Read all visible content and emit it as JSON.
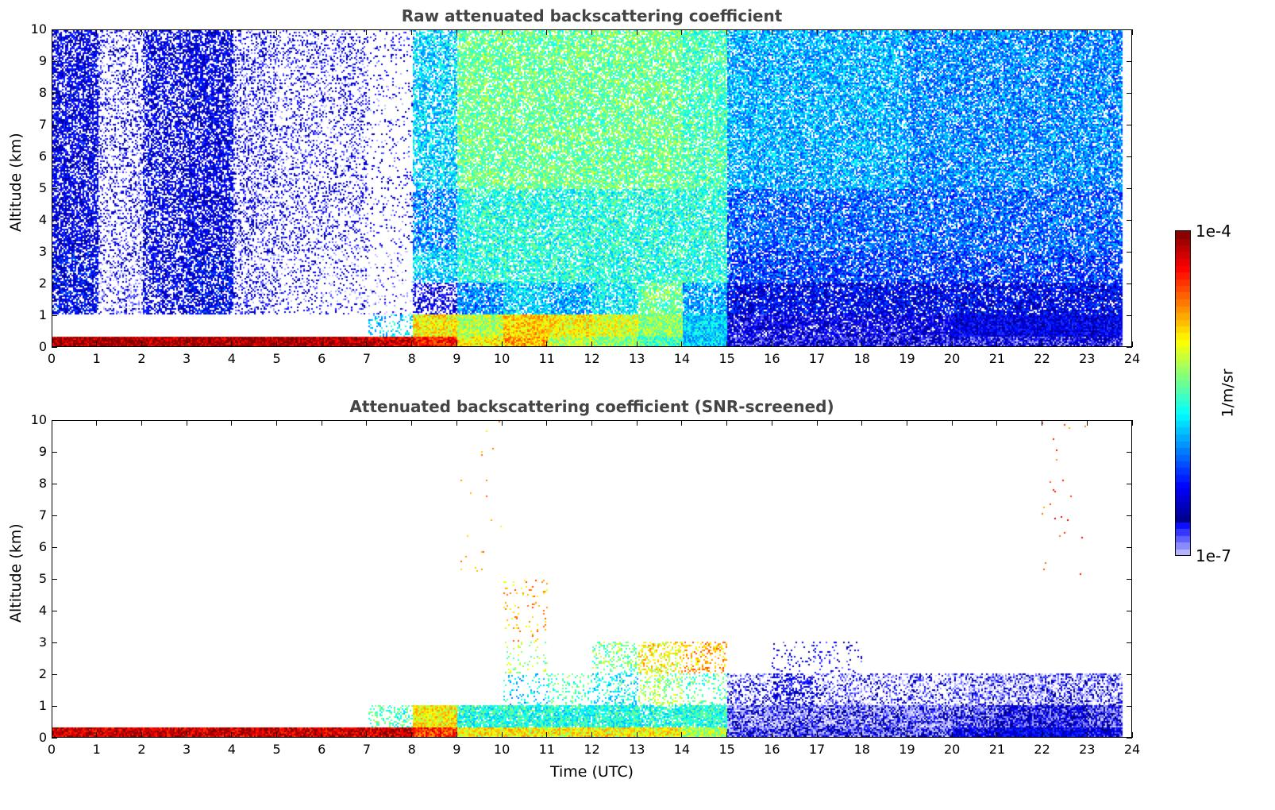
{
  "chart_data": [
    {
      "type": "heatmap",
      "title": "Raw attenuated backscattering coefficient",
      "xlabel": "",
      "ylabel": "Altitude (km)",
      "xlim": [
        0,
        24
      ],
      "ylim": [
        0,
        10
      ],
      "xticks": [
        "0",
        "1",
        "2",
        "3",
        "4",
        "5",
        "6",
        "7",
        "8",
        "9",
        "10",
        "11",
        "12",
        "13",
        "14",
        "15",
        "16",
        "17",
        "18",
        "19",
        "20",
        "21",
        "22",
        "23",
        "24"
      ],
      "yticks": [
        "0",
        "1",
        "2",
        "3",
        "4",
        "5",
        "6",
        "7",
        "8",
        "9",
        "10"
      ],
      "data_end_hour": 23.8,
      "altitude_bins_km": [
        [
          0,
          0.3
        ],
        [
          0.3,
          1
        ],
        [
          1,
          2
        ],
        [
          2,
          3
        ],
        [
          3,
          5
        ],
        [
          5,
          10
        ]
      ],
      "hours": [
        0,
        1,
        2,
        3,
        4,
        5,
        6,
        7,
        8,
        9,
        10,
        11,
        12,
        13,
        14,
        15,
        16,
        17,
        18,
        19,
        20,
        21,
        22,
        23
      ],
      "log10_values": [
        [
          -4.1,
          -4.1,
          -4.1,
          -4.1,
          -4.1,
          -4.1,
          -4.1,
          -4.2,
          -4.4,
          -5.0,
          -4.8,
          -5.2,
          -5.3,
          -5.5,
          -5.8,
          -6.7,
          -6.7,
          -6.7,
          -6.7,
          -6.7,
          -6.7,
          -6.7,
          -6.7,
          -6.7
        ],
        [
          null,
          null,
          null,
          null,
          null,
          null,
          null,
          -5.8,
          -5.0,
          -5.2,
          -4.9,
          -5.0,
          -5.1,
          -5.3,
          -5.8,
          -6.6,
          -6.6,
          -6.6,
          -6.6,
          -6.6,
          -6.5,
          -6.5,
          -6.5,
          -6.5
        ],
        [
          -6.4,
          -6.8,
          -6.5,
          -6.4,
          -6.7,
          -6.7,
          -6.8,
          -6.9,
          -6.6,
          -6.0,
          -5.8,
          -5.9,
          -5.7,
          -5.4,
          -5.9,
          -6.4,
          -6.4,
          -6.4,
          -6.4,
          -6.4,
          -6.4,
          -6.4,
          -6.4,
          -6.4
        ],
        [
          -6.4,
          -6.8,
          -6.5,
          -6.4,
          -6.7,
          -6.7,
          -6.8,
          -6.9,
          -5.8,
          -5.6,
          -5.6,
          -5.6,
          -5.6,
          -5.6,
          -5.6,
          -6.2,
          -6.2,
          -6.2,
          -6.2,
          -6.2,
          -6.2,
          -6.2,
          -6.2,
          -6.2
        ],
        [
          -6.5,
          -6.7,
          -6.5,
          -6.5,
          -6.7,
          -6.7,
          -6.7,
          -6.7,
          -6.0,
          -5.6,
          -5.6,
          -5.6,
          -5.6,
          -5.6,
          -5.6,
          -6.1,
          -6.1,
          -6.1,
          -6.1,
          -6.1,
          -6.1,
          -6.1,
          -6.1,
          -6.1
        ],
        [
          -6.5,
          -6.7,
          -6.5,
          -6.5,
          -6.7,
          -6.7,
          -6.7,
          -6.7,
          -5.8,
          -5.4,
          -5.4,
          -5.4,
          -5.4,
          -5.4,
          -5.5,
          -5.9,
          -5.9,
          -5.9,
          -5.9,
          -6.0,
          -6.0,
          -6.0,
          -6.0,
          -6.0
        ]
      ],
      "coverage": [
        [
          1,
          1,
          1,
          1,
          1,
          1,
          1,
          1,
          1,
          1,
          1,
          1,
          1,
          1,
          1,
          1,
          1,
          1,
          1,
          1,
          1,
          1,
          1,
          1
        ],
        [
          0,
          0.05,
          0,
          0,
          0.1,
          0.05,
          0.1,
          0.3,
          1,
          1,
          1,
          1,
          1,
          1,
          1,
          0.9,
          0.9,
          0.9,
          0.9,
          0.9,
          1,
          1,
          1,
          1
        ],
        [
          0.7,
          0.3,
          0.6,
          0.7,
          0.3,
          0.2,
          0.2,
          0.1,
          0.5,
          0.8,
          0.8,
          0.8,
          0.8,
          0.8,
          0.8,
          0.85,
          0.85,
          0.85,
          0.85,
          0.85,
          0.85,
          0.85,
          0.85,
          0.85
        ],
        [
          0.7,
          0.3,
          0.6,
          0.7,
          0.3,
          0.2,
          0.2,
          0.1,
          0.7,
          0.8,
          0.8,
          0.8,
          0.8,
          0.8,
          0.8,
          0.8,
          0.8,
          0.8,
          0.8,
          0.8,
          0.8,
          0.8,
          0.8,
          0.8
        ],
        [
          0.7,
          0.3,
          0.6,
          0.7,
          0.35,
          0.25,
          0.25,
          0.1,
          0.7,
          0.8,
          0.8,
          0.8,
          0.8,
          0.8,
          0.8,
          0.8,
          0.8,
          0.8,
          0.8,
          0.8,
          0.8,
          0.8,
          0.8,
          0.8
        ],
        [
          0.7,
          0.3,
          0.6,
          0.7,
          0.35,
          0.25,
          0.25,
          0.1,
          0.7,
          0.8,
          0.8,
          0.8,
          0.8,
          0.8,
          0.8,
          0.8,
          0.8,
          0.8,
          0.8,
          0.8,
          0.8,
          0.8,
          0.8,
          0.8
        ]
      ]
    },
    {
      "type": "heatmap",
      "title": "Attenuated backscattering coefficient (SNR-screened)",
      "xlabel": "Time (UTC)",
      "ylabel": "Altitude (km)",
      "xlim": [
        0,
        24
      ],
      "ylim": [
        0,
        10
      ],
      "xticks": [
        "0",
        "1",
        "2",
        "3",
        "4",
        "5",
        "6",
        "7",
        "8",
        "9",
        "10",
        "11",
        "12",
        "13",
        "14",
        "15",
        "16",
        "17",
        "18",
        "19",
        "20",
        "21",
        "22",
        "23",
        "24"
      ],
      "yticks": [
        "0",
        "1",
        "2",
        "3",
        "4",
        "5",
        "6",
        "7",
        "8",
        "9",
        "10"
      ],
      "data_end_hour": 23.8,
      "altitude_bins_km": [
        [
          0,
          0.3
        ],
        [
          0.3,
          1
        ],
        [
          1,
          2
        ],
        [
          2,
          3
        ],
        [
          3,
          5
        ],
        [
          5,
          10
        ]
      ],
      "hours": [
        0,
        1,
        2,
        3,
        4,
        5,
        6,
        7,
        8,
        9,
        10,
        11,
        12,
        13,
        14,
        15,
        16,
        17,
        18,
        19,
        20,
        21,
        22,
        23
      ],
      "log10_values": [
        [
          -4.2,
          -4.2,
          -4.2,
          -4.2,
          -4.2,
          -4.2,
          -4.2,
          -4.2,
          -4.5,
          -5.0,
          -5.0,
          -5.0,
          -5.0,
          -5.0,
          -5.2,
          -6.8,
          -6.8,
          -6.8,
          -6.8,
          -6.8,
          -6.6,
          -6.5,
          -6.5,
          -6.6
        ],
        [
          null,
          null,
          null,
          null,
          null,
          null,
          null,
          -5.5,
          -5.0,
          -5.6,
          -5.6,
          -5.6,
          -5.6,
          -5.6,
          -5.6,
          -6.85,
          -6.85,
          -6.85,
          -6.85,
          -6.85,
          -6.8,
          -6.7,
          -6.7,
          -6.8
        ],
        [
          null,
          null,
          null,
          null,
          null,
          null,
          null,
          null,
          null,
          null,
          -5.8,
          -5.5,
          -5.7,
          -5.3,
          -5.5,
          -6.8,
          -6.6,
          -6.8,
          -6.8,
          -6.8,
          -6.85,
          -6.85,
          -6.85,
          -6.85
        ],
        [
          null,
          null,
          null,
          null,
          null,
          null,
          null,
          null,
          null,
          null,
          -5.3,
          null,
          -5.4,
          -5.0,
          -4.8,
          null,
          -6.6,
          -6.6,
          null,
          null,
          null,
          null,
          null,
          null
        ],
        [
          null,
          null,
          null,
          null,
          null,
          null,
          null,
          null,
          null,
          null,
          -4.8,
          null,
          null,
          null,
          null,
          null,
          null,
          null,
          null,
          null,
          null,
          null,
          null,
          null
        ],
        [
          null,
          null,
          null,
          null,
          null,
          null,
          null,
          null,
          null,
          -4.8,
          null,
          null,
          null,
          null,
          null,
          null,
          null,
          null,
          null,
          null,
          null,
          null,
          -4.5,
          null
        ]
      ],
      "coverage": [
        [
          1,
          1,
          1,
          1,
          1,
          1,
          1,
          1,
          1,
          1,
          1,
          1,
          1,
          1,
          1,
          1,
          1,
          1,
          1,
          1,
          1,
          1,
          1,
          1
        ],
        [
          0,
          0,
          0,
          0,
          0,
          0,
          0,
          0.3,
          1,
          0.9,
          0.9,
          0.9,
          0.9,
          0.8,
          0.9,
          0.9,
          0.9,
          0.9,
          0.9,
          0.9,
          0.95,
          1,
          1,
          1
        ],
        [
          0,
          0,
          0,
          0,
          0,
          0,
          0,
          0,
          0,
          0,
          0.15,
          0.2,
          0.3,
          0.3,
          0.2,
          0.4,
          0.5,
          0.4,
          0.35,
          0.4,
          0.55,
          0.6,
          0.6,
          0.55
        ],
        [
          0,
          0,
          0,
          0,
          0,
          0,
          0,
          0,
          0,
          0,
          0.1,
          0,
          0.3,
          0.4,
          0.3,
          0,
          0.1,
          0.1,
          0,
          0,
          0,
          0,
          0,
          0
        ],
        [
          0,
          0,
          0,
          0,
          0,
          0,
          0,
          0,
          0,
          0,
          0.05,
          0,
          0,
          0,
          0,
          0,
          0,
          0,
          0,
          0,
          0,
          0,
          0,
          0
        ],
        [
          0,
          0,
          0,
          0,
          0,
          0,
          0,
          0,
          0,
          0.01,
          0,
          0,
          0,
          0,
          0,
          0,
          0,
          0,
          0,
          0,
          0,
          0,
          0.01,
          0
        ]
      ]
    }
  ],
  "colorbar": {
    "label": "1/m/sr",
    "max_label": "1e-4",
    "min_label": "1e-7",
    "log10_range": [
      -7,
      -4
    ],
    "colormap": "jet"
  }
}
